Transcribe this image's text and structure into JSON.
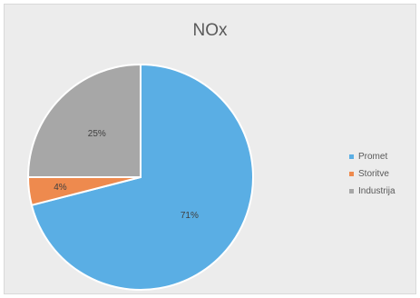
{
  "chart_data": {
    "type": "pie",
    "title": "NOx",
    "categories": [
      "Promet",
      "Storitve",
      "Industrija"
    ],
    "values": [
      71,
      4,
      25
    ],
    "data_labels": [
      "71%",
      "4%",
      "25%"
    ],
    "colors": [
      "#5aaee4",
      "#ee8a4e",
      "#a7a7a7"
    ],
    "legend": "right",
    "start_angle_deg": 0,
    "direction": "clockwise"
  }
}
